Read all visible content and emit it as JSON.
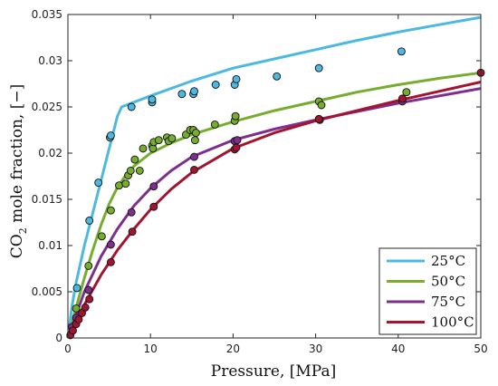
{
  "chart_data": {
    "type": "line",
    "xlabel": "Pressure,  [MPa]",
    "ylabel_prefix": "CO",
    "ylabel_sub": "2",
    "ylabel_suffix": " mole fraction,  [−]",
    "xlim": [
      0,
      50
    ],
    "ylim": [
      0,
      0.035
    ],
    "xticks": [
      0,
      10,
      20,
      30,
      40,
      50
    ],
    "yticks": [
      0,
      0.005,
      0.01,
      0.015,
      0.02,
      0.025,
      0.03,
      0.035
    ],
    "ytick_labels": [
      "0",
      "0.005",
      "0.01",
      "0.015",
      "0.02",
      "0.025",
      "0.03",
      "0.035"
    ],
    "legend_position": "bottom-right",
    "series": [
      {
        "name": "25°C",
        "color": "#4db8e0",
        "curve": [
          [
            0,
            0
          ],
          [
            0.5,
            0.0035
          ],
          [
            1,
            0.006
          ],
          [
            2,
            0.01
          ],
          [
            3,
            0.0135
          ],
          [
            4,
            0.017
          ],
          [
            5,
            0.0205
          ],
          [
            6,
            0.024
          ],
          [
            6.5,
            0.025
          ],
          [
            10,
            0.0262
          ],
          [
            15,
            0.0278
          ],
          [
            20,
            0.0292
          ],
          [
            25,
            0.0302
          ],
          [
            30,
            0.0312
          ],
          [
            35,
            0.0322
          ],
          [
            40,
            0.0331
          ],
          [
            45,
            0.0339
          ],
          [
            50,
            0.0347
          ]
        ],
        "points": [
          [
            1.1,
            0.0054
          ],
          [
            2.6,
            0.0127
          ],
          [
            3.7,
            0.0168
          ],
          [
            5.1,
            0.0217
          ],
          [
            5.2,
            0.0219
          ],
          [
            7.7,
            0.025
          ],
          [
            10.2,
            0.0255
          ],
          [
            10.2,
            0.0258
          ],
          [
            13.8,
            0.0264
          ],
          [
            15.2,
            0.0264
          ],
          [
            15.3,
            0.0267
          ],
          [
            17.9,
            0.0274
          ],
          [
            20.2,
            0.0274
          ],
          [
            20.4,
            0.028
          ],
          [
            25.3,
            0.0283
          ],
          [
            30.4,
            0.0292
          ],
          [
            40.4,
            0.031
          ]
        ]
      },
      {
        "name": "50°C",
        "color": "#77ad2e",
        "curve": [
          [
            0,
            0
          ],
          [
            1,
            0.0033
          ],
          [
            2,
            0.0065
          ],
          [
            3,
            0.0095
          ],
          [
            4,
            0.0122
          ],
          [
            5,
            0.0145
          ],
          [
            6,
            0.0163
          ],
          [
            7,
            0.0176
          ],
          [
            8,
            0.0186
          ],
          [
            10,
            0.02
          ],
          [
            12.5,
            0.0211
          ],
          [
            15,
            0.022
          ],
          [
            20,
            0.0234
          ],
          [
            25,
            0.0246
          ],
          [
            30,
            0.0256
          ],
          [
            35,
            0.0266
          ],
          [
            40,
            0.0274
          ],
          [
            45,
            0.0281
          ],
          [
            50,
            0.0287
          ]
        ],
        "points": [
          [
            1.0,
            0.0032
          ],
          [
            2.5,
            0.0078
          ],
          [
            4.1,
            0.011
          ],
          [
            5.2,
            0.0138
          ],
          [
            6.2,
            0.0165
          ],
          [
            7.0,
            0.0167
          ],
          [
            7.3,
            0.0176
          ],
          [
            7.6,
            0.0181
          ],
          [
            8.1,
            0.0193
          ],
          [
            8.7,
            0.0181
          ],
          [
            9.1,
            0.0205
          ],
          [
            10.2,
            0.0208
          ],
          [
            10.3,
            0.0205
          ],
          [
            10.4,
            0.0212
          ],
          [
            11.0,
            0.0214
          ],
          [
            12.0,
            0.0217
          ],
          [
            12.2,
            0.0213
          ],
          [
            12.6,
            0.0216
          ],
          [
            14.3,
            0.022
          ],
          [
            14.8,
            0.0225
          ],
          [
            15.2,
            0.0225
          ],
          [
            15.4,
            0.0214
          ],
          [
            15.5,
            0.0222
          ],
          [
            17.8,
            0.0231
          ],
          [
            20.2,
            0.0235
          ],
          [
            20.3,
            0.024
          ],
          [
            30.4,
            0.0256
          ],
          [
            30.7,
            0.0252
          ],
          [
            41.0,
            0.0266
          ]
        ]
      },
      {
        "name": "75°C",
        "color": "#7e2f8e",
        "curve": [
          [
            0,
            0
          ],
          [
            1,
            0.0025
          ],
          [
            2,
            0.005
          ],
          [
            4,
            0.0088
          ],
          [
            6,
            0.0118
          ],
          [
            8,
            0.0143
          ],
          [
            10,
            0.0162
          ],
          [
            12.5,
            0.0181
          ],
          [
            15,
            0.0196
          ],
          [
            20,
            0.0214
          ],
          [
            25,
            0.0226
          ],
          [
            30,
            0.0236
          ],
          [
            35,
            0.0245
          ],
          [
            40,
            0.0254
          ],
          [
            45,
            0.0262
          ],
          [
            50,
            0.027
          ]
        ],
        "points": [
          [
            0.5,
            0.0012
          ],
          [
            1.0,
            0.0022
          ],
          [
            2.5,
            0.0052
          ],
          [
            5.2,
            0.0101
          ],
          [
            7.7,
            0.0136
          ],
          [
            10.4,
            0.0164
          ],
          [
            15.3,
            0.0196
          ],
          [
            20.2,
            0.0213
          ],
          [
            20.5,
            0.0214
          ],
          [
            30.5,
            0.0236
          ],
          [
            40.5,
            0.0256
          ]
        ]
      },
      {
        "name": "100°C",
        "color": "#a2142f",
        "curve": [
          [
            0,
            0
          ],
          [
            1,
            0.0018
          ],
          [
            2,
            0.0036
          ],
          [
            4,
            0.0068
          ],
          [
            6,
            0.0095
          ],
          [
            8,
            0.0118
          ],
          [
            10,
            0.0139
          ],
          [
            12.5,
            0.0161
          ],
          [
            15,
            0.0179
          ],
          [
            20,
            0.0205
          ],
          [
            25,
            0.0222
          ],
          [
            30,
            0.0235
          ],
          [
            35,
            0.0246
          ],
          [
            40,
            0.0257
          ],
          [
            45,
            0.0267
          ],
          [
            50,
            0.0277
          ]
        ],
        "points": [
          [
            0.3,
            0.0003
          ],
          [
            0.6,
            0.0008
          ],
          [
            1.0,
            0.0015
          ],
          [
            1.3,
            0.002
          ],
          [
            1.7,
            0.0027
          ],
          [
            2.1,
            0.0033
          ],
          [
            2.6,
            0.0042
          ],
          [
            5.2,
            0.0082
          ],
          [
            7.8,
            0.0115
          ],
          [
            10.4,
            0.0142
          ],
          [
            15.3,
            0.0182
          ],
          [
            20.2,
            0.0204
          ],
          [
            20.4,
            0.0206
          ],
          [
            30.4,
            0.0237
          ],
          [
            40.5,
            0.0259
          ],
          [
            50.0,
            0.0287
          ]
        ]
      }
    ]
  }
}
